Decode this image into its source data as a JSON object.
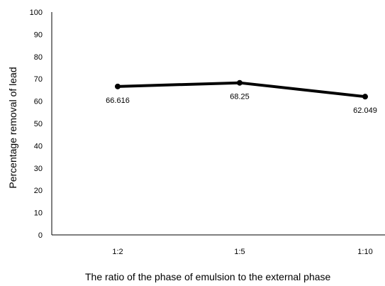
{
  "chart_data": {
    "type": "line",
    "title": "",
    "xlabel": "The ratio of the phase of emulsion to the external phase",
    "ylabel": "Percentage removal of lead",
    "categories": [
      "1:2",
      "1:5",
      "1:10"
    ],
    "series": [
      {
        "values": [
          66.616,
          68.25,
          62.049
        ],
        "data_labels": [
          "66.616",
          "68.25",
          "62.049"
        ]
      }
    ],
    "ylim": [
      0,
      100
    ],
    "yticks": [
      0,
      10,
      20,
      30,
      40,
      50,
      60,
      70,
      80,
      90,
      100
    ],
    "grid": false,
    "legend": "none",
    "line_color": "#000000"
  }
}
